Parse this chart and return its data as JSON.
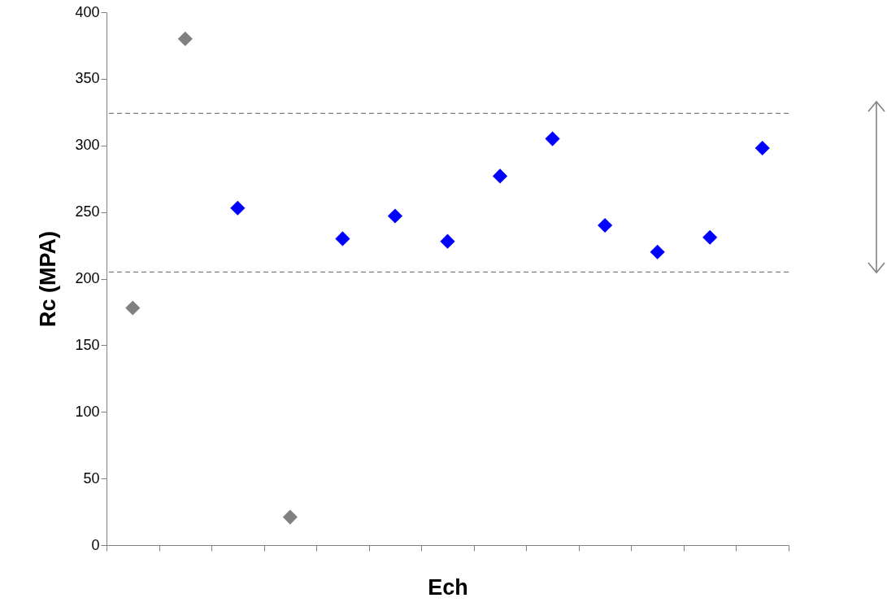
{
  "chart_data": {
    "type": "scatter",
    "xlabel": "Ech",
    "ylabel": "Rc (MPA)",
    "categories": [
      null,
      null,
      null,
      null,
      null,
      null,
      null,
      null,
      null,
      null,
      null,
      null,
      null
    ],
    "series": [
      {
        "color": "#808080",
        "values": [
          178,
          380,
          null,
          21,
          null,
          null,
          null,
          null,
          null,
          null,
          null,
          null,
          null
        ]
      },
      {
        "color": "#0000ff",
        "values": [
          null,
          null,
          253,
          null,
          230,
          247,
          228,
          277,
          305,
          240,
          220,
          231,
          298
        ]
      }
    ],
    "ylim": [
      0,
      400
    ],
    "yticks": [
      0,
      50,
      100,
      150,
      200,
      250,
      300,
      350,
      400
    ],
    "ref_lines": [
      {
        "axis": "y",
        "value": 324,
        "color": "#808080",
        "line_style": "dashed"
      },
      {
        "axis": "y",
        "value": 205,
        "color": "#808080",
        "line_style": "dashed"
      }
    ],
    "marker": "diamond",
    "grid": false,
    "tick_labels": "y"
  }
}
